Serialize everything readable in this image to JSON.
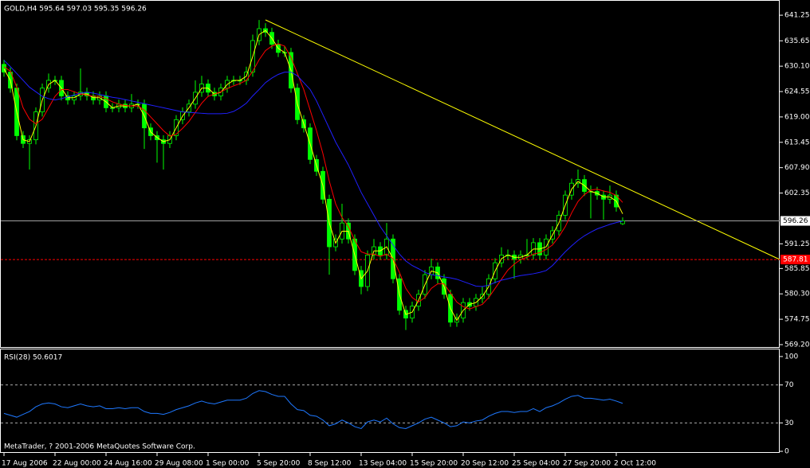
{
  "chart_data": [
    {
      "type": "candlestick",
      "title": "GOLD,H4  595.64 597.03 595.35 596.26",
      "color": "#00ff00",
      "categories": [
        "17 Aug 2006",
        null,
        null,
        null,
        null,
        null,
        null,
        null,
        "22 Aug 00:00",
        null,
        null,
        null,
        null,
        null,
        null,
        null,
        "24 Aug 16:00",
        null,
        null,
        null,
        null,
        null,
        null,
        null,
        "29 Aug 08:00",
        null,
        null,
        null,
        null,
        null,
        null,
        null,
        "1 Sep 00:00",
        null,
        null,
        null,
        null,
        null,
        null,
        null,
        "5 Sep 20:00",
        null,
        null,
        null,
        null,
        null,
        null,
        null,
        "8 Sep 12:00",
        null,
        null,
        null,
        null,
        null,
        null,
        null,
        "13 Sep 04:00",
        null,
        null,
        null,
        null,
        null,
        null,
        null,
        "15 Sep 20:00",
        null,
        null,
        null,
        null,
        null,
        null,
        null,
        "20 Sep 12:00",
        null,
        null,
        null,
        null,
        null,
        null,
        null,
        "25 Sep 04:00",
        null,
        null,
        null,
        null,
        null,
        null,
        null,
        "27 Sep 20:00",
        null,
        null,
        null,
        null,
        null,
        null,
        null,
        "2 Oct 12:00",
        null
      ],
      "open": [
        630.5,
        628.8,
        625.3,
        614.9,
        613.2,
        614.0,
        620.1,
        625.3,
        627.0,
        627.0,
        623.6,
        622.7,
        623.6,
        624.4,
        623.6,
        622.7,
        623.6,
        621.0,
        621.0,
        621.8,
        621.0,
        621.8,
        621.8,
        616.6,
        614.9,
        614.0,
        613.2,
        614.9,
        618.4,
        620.1,
        621.8,
        624.4,
        626.2,
        624.4,
        623.6,
        625.3,
        627.0,
        627.0,
        627.0,
        628.8,
        635.7,
        638.3,
        637.5,
        634.9,
        633.1,
        633.1,
        625.3,
        618.4,
        616.6,
        609.7,
        607.1,
        601.0,
        590.6,
        592.3,
        595.8,
        592.3,
        585.4,
        581.9,
        588.8,
        590.6,
        588.8,
        592.3,
        583.6,
        576.7,
        575.0,
        577.6,
        580.2,
        584.5,
        586.2,
        583.6,
        580.2,
        574.1,
        575.0,
        578.4,
        577.6,
        579.3,
        580.2,
        583.6,
        587.1,
        588.8,
        588.8,
        587.9,
        588.8,
        588.8,
        591.5,
        588.8,
        592.3,
        594.1,
        597.5,
        601.9,
        604.5,
        605.3,
        602.7,
        602.7,
        601.9,
        601.0,
        601.9,
        595.64
      ],
      "high": [
        631.5,
        629.8,
        626.3,
        615.9,
        615.0,
        621.1,
        626.3,
        628.5,
        628.0,
        628.0,
        624.6,
        624.6,
        629.6,
        625.4,
        624.6,
        624.6,
        624.6,
        622.0,
        622.8,
        622.8,
        624.0,
        622.8,
        622.8,
        617.6,
        615.9,
        615.0,
        615.9,
        619.4,
        621.1,
        622.8,
        627.0,
        628.0,
        627.2,
        625.4,
        626.3,
        628.0,
        628.0,
        628.0,
        630.0,
        637.0,
        640.2,
        639.5,
        638.5,
        635.9,
        634.5,
        634.1,
        626.3,
        619.4,
        617.6,
        610.7,
        608.1,
        602.0,
        593.3,
        600.0,
        596.8,
        593.3,
        586.4,
        589.8,
        592.3,
        591.6,
        595.8,
        593.3,
        584.6,
        577.7,
        578.6,
        581.2,
        585.5,
        588.0,
        587.2,
        584.6,
        581.2,
        576.0,
        579.4,
        579.4,
        580.3,
        582.0,
        584.6,
        588.1,
        590.5,
        590.0,
        589.8,
        589.8,
        592.3,
        592.5,
        592.5,
        593.3,
        595.1,
        598.5,
        602.9,
        605.5,
        607.5,
        606.3,
        604.0,
        603.7,
        602.9,
        604.0,
        602.9,
        597.03
      ],
      "low": [
        627.8,
        624.3,
        613.9,
        612.2,
        607.5,
        613.0,
        619.1,
        624.3,
        626.0,
        622.6,
        621.7,
        621.7,
        622.6,
        622.6,
        621.7,
        621.7,
        620.0,
        620.0,
        620.0,
        620.0,
        620.0,
        620.8,
        612.0,
        613.9,
        609.0,
        607.5,
        612.2,
        613.9,
        617.4,
        619.1,
        620.8,
        623.4,
        623.4,
        622.6,
        622.6,
        624.3,
        626.0,
        626.0,
        626.0,
        627.8,
        634.7,
        636.5,
        633.9,
        632.1,
        632.1,
        624.3,
        617.4,
        615.6,
        608.7,
        606.1,
        600.0,
        584.5,
        589.6,
        591.3,
        591.3,
        584.4,
        580.2,
        580.9,
        587.8,
        587.8,
        587.8,
        582.6,
        575.7,
        572.4,
        574.0,
        576.6,
        579.2,
        583.5,
        582.6,
        579.2,
        573.1,
        573.1,
        574.0,
        576.6,
        576.6,
        578.3,
        579.2,
        582.6,
        586.1,
        587.8,
        583.6,
        586.9,
        587.8,
        587.8,
        587.8,
        587.8,
        591.3,
        593.1,
        596.5,
        600.9,
        603.5,
        601.7,
        596.8,
        600.9,
        596.5,
        600.0,
        598.3,
        595.35
      ],
      "close": [
        628.8,
        625.3,
        614.9,
        613.2,
        614.0,
        620.1,
        625.3,
        627.0,
        627.0,
        623.6,
        622.7,
        623.6,
        624.4,
        623.6,
        622.7,
        623.6,
        621.0,
        621.0,
        621.8,
        621.0,
        621.8,
        621.8,
        616.6,
        614.9,
        614.0,
        613.2,
        614.9,
        618.4,
        620.1,
        621.8,
        624.4,
        626.2,
        624.4,
        623.6,
        625.3,
        627.0,
        627.0,
        627.0,
        628.8,
        635.7,
        638.3,
        637.5,
        634.9,
        633.1,
        633.1,
        625.3,
        618.4,
        616.6,
        609.7,
        607.1,
        601.0,
        590.6,
        592.3,
        595.8,
        592.3,
        585.4,
        581.9,
        588.8,
        590.6,
        588.8,
        592.3,
        583.6,
        576.7,
        575.0,
        577.6,
        580.2,
        584.5,
        586.2,
        583.6,
        580.2,
        574.1,
        575.0,
        578.4,
        577.6,
        579.3,
        580.2,
        583.6,
        587.1,
        588.8,
        588.8,
        587.9,
        588.8,
        588.8,
        591.5,
        588.8,
        592.3,
        594.1,
        597.5,
        601.9,
        604.5,
        605.3,
        602.7,
        602.7,
        601.9,
        601.0,
        601.9,
        599.3,
        596.26
      ],
      "series": [
        {
          "color": "#ffff00",
          "values": [
            629.5,
            627.0,
            620.1,
            614.0,
            613.6,
            617.0,
            622.7,
            626.1,
            627.0,
            625.3,
            623.2,
            623.2,
            624.0,
            624.0,
            623.2,
            623.2,
            622.3,
            621.0,
            621.4,
            621.4,
            621.4,
            621.8,
            619.2,
            615.7,
            614.5,
            613.6,
            614.0,
            616.6,
            619.2,
            621.0,
            623.1,
            625.3,
            625.3,
            624.0,
            624.4,
            626.1,
            627.0,
            627.0,
            627.9,
            632.2,
            637.0,
            637.9,
            636.2,
            634.0,
            633.1,
            629.2,
            621.8,
            617.5,
            613.1,
            608.4,
            604.0,
            595.8,
            591.4,
            594.0,
            594.0,
            588.8,
            583.6,
            585.3,
            589.7,
            589.7,
            590.6,
            588.0,
            580.2,
            575.8,
            576.3,
            578.9,
            582.3,
            585.3,
            584.9,
            581.9,
            577.1,
            574.5,
            576.7,
            578.0,
            578.4,
            579.7,
            581.9,
            585.3,
            588.0,
            588.8,
            588.3,
            588.3,
            588.8,
            590.1,
            590.1,
            590.6,
            593.2,
            595.8,
            599.7,
            603.2,
            604.9,
            604.0,
            602.7,
            602.3,
            601.5,
            601.5,
            600.6,
            597.8
          ]
        },
        {
          "color": "#ff0000",
          "values": [
            630.0,
            629.0,
            625.5,
            621.0,
            618.5,
            617.5,
            618.5,
            621.0,
            623.5,
            625.0,
            625.0,
            624.5,
            624.0,
            623.8,
            623.5,
            623.5,
            623.0,
            622.3,
            621.8,
            621.5,
            621.4,
            621.4,
            620.5,
            619.0,
            617.5,
            616.0,
            614.8,
            615.2,
            616.5,
            618.0,
            620.0,
            622.0,
            623.5,
            624.0,
            624.5,
            625.2,
            625.8,
            626.3,
            627.0,
            629.0,
            631.5,
            633.5,
            634.5,
            635.0,
            634.5,
            632.0,
            628.5,
            625.0,
            620.5,
            616.0,
            611.0,
            605.0,
            600.0,
            597.0,
            595.0,
            592.0,
            589.5,
            589.0,
            589.0,
            588.5,
            589.0,
            588.0,
            585.0,
            581.5,
            579.5,
            578.5,
            579.5,
            581.5,
            582.5,
            582.5,
            580.5,
            578.5,
            577.5,
            577.0,
            577.5,
            578.0,
            579.5,
            581.5,
            583.5,
            585.5,
            586.8,
            587.8,
            588.3,
            589.0,
            589.3,
            590.0,
            591.0,
            592.8,
            595.0,
            598.0,
            600.5,
            602.0,
            603.0,
            603.2,
            602.8,
            602.5,
            601.8,
            600.3
          ]
        },
        {
          "color": "#2020ff",
          "values": [
            631.4,
            630.0,
            628.5,
            627.0,
            625.5,
            624.5,
            623.5,
            623.0,
            622.7,
            623.0,
            623.4,
            623.8,
            624.2,
            624.4,
            624.2,
            623.9,
            623.6,
            623.3,
            623.1,
            622.8,
            622.5,
            622.2,
            621.9,
            621.6,
            621.3,
            621.0,
            620.7,
            620.4,
            620.1,
            620.0,
            619.9,
            619.8,
            619.7,
            619.7,
            619.7,
            619.8,
            620.2,
            621.0,
            622.0,
            623.6,
            625.0,
            626.5,
            627.5,
            628.3,
            628.8,
            628.8,
            628.0,
            626.5,
            625.0,
            622.5,
            619.5,
            616.5,
            613.5,
            611.0,
            608.5,
            605.5,
            602.5,
            600.0,
            597.5,
            595.0,
            593.0,
            591.0,
            589.0,
            587.5,
            586.5,
            585.8,
            585.0,
            584.5,
            584.3,
            584.0,
            583.8,
            583.5,
            583.0,
            582.5,
            582.0,
            581.9,
            582.2,
            582.8,
            583.3,
            583.6,
            584.0,
            584.3,
            584.5,
            584.7,
            585.0,
            585.4,
            586.5,
            588.0,
            589.5,
            590.8,
            592.0,
            593.0,
            593.8,
            594.5,
            595.0,
            595.5,
            595.9,
            596.2
          ]
        }
      ],
      "price_lines": [
        {
          "value": 596.26,
          "color": "#a0a0a0",
          "label_color": "#ffffff",
          "text_color": "#000000",
          "dashed": false
        },
        {
          "value": 587.81,
          "color": "#ff0000",
          "label_color": "#ff0000",
          "text_color": "#ffffff",
          "dashed": true
        }
      ],
      "ylim": [
        568.5,
        644.4
      ],
      "yticks": [
        641.25,
        635.65,
        {
          "value": 630.1,
          "label": "630.10"
        },
        624.55,
        {
          "value": 619,
          "label": "619.00"
        },
        613.45,
        {
          "value": 607.9,
          "label": "607.90"
        },
        602.35,
        591.25,
        585.85,
        {
          "value": 580.3,
          "label": "580.30"
        },
        574.75,
        {
          "value": 569.2,
          "label": "569.20"
        }
      ],
      "grid": false
    },
    {
      "type": "line",
      "title": "RSI(28) 50.6017",
      "color": "#1e78ff",
      "values": [
        40,
        38,
        36,
        39,
        42,
        47,
        50,
        51,
        50,
        47,
        46,
        48,
        50,
        48,
        47,
        48,
        45,
        45,
        46,
        45,
        46,
        46,
        42,
        40,
        40,
        39,
        41,
        44,
        46,
        48,
        51,
        53,
        51,
        50,
        52,
        54,
        54,
        54,
        56,
        61,
        64,
        63,
        60,
        58,
        58,
        50,
        44,
        43,
        38,
        37,
        33,
        27,
        29,
        33,
        30,
        26,
        24,
        31,
        33,
        31,
        35,
        29,
        25,
        24,
        27,
        30,
        34,
        36,
        33,
        30,
        26,
        27,
        31,
        30,
        32,
        33,
        37,
        40,
        42,
        42,
        41,
        42,
        42,
        45,
        42,
        46,
        48,
        51,
        55,
        58,
        59,
        56,
        56,
        55,
        54,
        55,
        53,
        50.6017
      ],
      "levels": [
        70,
        30
      ],
      "ylim": [
        -0.8,
        107.5
      ],
      "yticks": [
        100,
        70,
        30,
        0
      ]
    }
  ],
  "footer": "MetaTrader, ? 2001-2006 MetaQuotes Software Corp."
}
